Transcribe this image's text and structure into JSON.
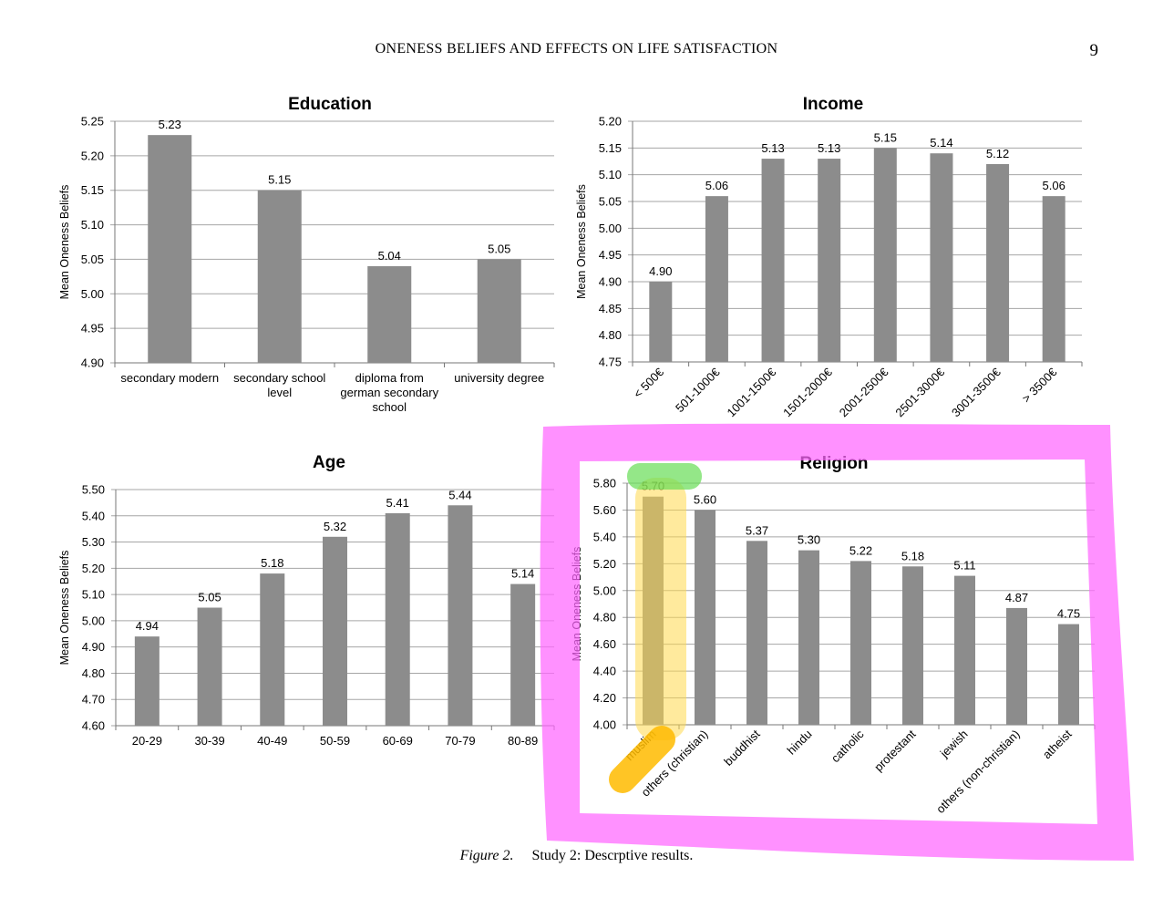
{
  "header": {
    "title": "ONENESS BELIEFS AND EFFECTS ON LIFE SATISFACTION",
    "page_number": "9"
  },
  "caption": {
    "label": "Figure 2.",
    "text": "Study 2: Descrptive results."
  },
  "colors": {
    "bar": "#8c8c8c",
    "grid": "#a6a6a6",
    "highlight_pink": "#ff66ff",
    "highlight_yellow": "#ffd84d",
    "highlight_green": "#66dd55",
    "highlight_orange": "#ffbb00"
  },
  "chart_data": [
    {
      "type": "bar",
      "title": "Education",
      "ylabel": "Mean Oneness Beliefs",
      "ylim": [
        4.9,
        5.25
      ],
      "yticks": [
        "4.90",
        "4.95",
        "5.00",
        "5.05",
        "5.10",
        "5.15",
        "5.20",
        "5.25"
      ],
      "categories": [
        [
          "secondary modern"
        ],
        [
          "secondary school",
          "level"
        ],
        [
          "diploma from",
          "german secondary",
          "school"
        ],
        [
          "university degree"
        ]
      ],
      "values": [
        5.23,
        5.15,
        5.04,
        5.05
      ],
      "data_labels": [
        "5.23",
        "5.15",
        "5.04",
        "5.05"
      ],
      "grid": true
    },
    {
      "type": "bar",
      "title": "Income",
      "ylabel": "Mean Oneness Beliefs",
      "ylim": [
        4.75,
        5.2
      ],
      "yticks": [
        "4.75",
        "4.80",
        "4.85",
        "4.90",
        "4.95",
        "5.00",
        "5.05",
        "5.10",
        "5.15",
        "5.20"
      ],
      "categories": [
        "< 500€",
        "501-1000€",
        "1001-1500€",
        "1501-2000€",
        "2001-2500€",
        "2501-3000€",
        "3001-3500€",
        "> 3500€"
      ],
      "values": [
        4.9,
        5.06,
        5.13,
        5.13,
        5.15,
        5.14,
        5.12,
        5.06
      ],
      "data_labels": [
        "4.90",
        "5.06",
        "5.13",
        "5.13",
        "5.15",
        "5.14",
        "5.12",
        "5.06"
      ],
      "grid": true
    },
    {
      "type": "bar",
      "title": "Age",
      "ylabel": "Mean Oneness Beliefs",
      "ylim": [
        4.6,
        5.5
      ],
      "yticks": [
        "4.60",
        "4.70",
        "4.80",
        "4.90",
        "5.00",
        "5.10",
        "5.20",
        "5.30",
        "5.40",
        "5.50"
      ],
      "categories": [
        "20-29",
        "30-39",
        "40-49",
        "50-59",
        "60-69",
        "70-79",
        "80-89"
      ],
      "values": [
        4.94,
        5.05,
        5.18,
        5.32,
        5.41,
        5.44,
        5.14
      ],
      "data_labels": [
        "4.94",
        "5.05",
        "5.18",
        "5.32",
        "5.41",
        "5.44",
        "5.14"
      ],
      "grid": true
    },
    {
      "type": "bar",
      "title": "Religion",
      "ylabel": "Mean Oneness Beliefs",
      "ylim": [
        4.0,
        5.8
      ],
      "yticks": [
        "4.00",
        "4.20",
        "4.40",
        "4.60",
        "4.80",
        "5.00",
        "5.20",
        "5.40",
        "5.60",
        "5.80"
      ],
      "categories": [
        "muslim",
        "others (christian)",
        "buddhist",
        "hindu",
        "catholic",
        "protestant",
        "jewish",
        "others (non-christian)",
        "atheist"
      ],
      "values": [
        5.7,
        5.6,
        5.37,
        5.3,
        5.22,
        5.18,
        5.11,
        4.87,
        4.75
      ],
      "data_labels": [
        "5.70",
        "5.60",
        "5.37",
        "5.30",
        "5.22",
        "5.18",
        "5.11",
        "4.87",
        "4.75"
      ],
      "grid": true,
      "highlighted_category": "muslim"
    }
  ]
}
